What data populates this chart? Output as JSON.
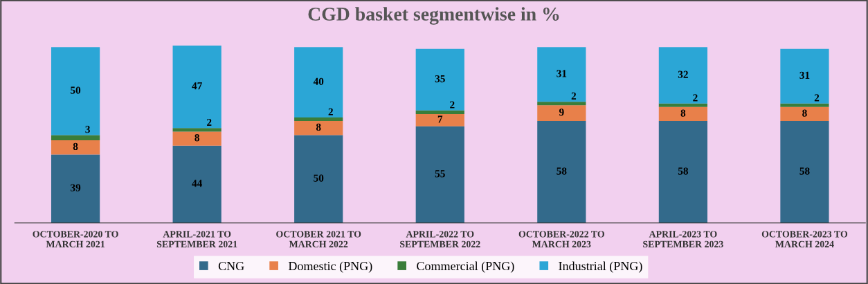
{
  "chart_data": {
    "type": "bar",
    "title": "CGD basket segmentwise in %",
    "categories": [
      "OCTOBER-2020 TO\nMARCH 2021",
      "APRIL-2021 TO\nSEPTEMBER 2021",
      "OCTOBER 2021 TO\nMARCH 2022",
      "APRIL-2022 TO\nSEPTEMBER 2022",
      "OCTOBER-2022 TO\nMARCH 2023",
      "APRIL-2023 TO\nSEPTEMBER 2023",
      "OCTOBER-2023 TO\nMARCH 2024"
    ],
    "stacked": true,
    "data_labels": true,
    "legend": "bottom",
    "grid": false,
    "series": [
      {
        "name": "CNG",
        "color": "#336a8b",
        "values": [
          39,
          44,
          50,
          55,
          58,
          58,
          58
        ]
      },
      {
        "name": "Domestic (PNG)",
        "color": "#e8804a",
        "values": [
          8,
          8,
          8,
          7,
          9,
          8,
          8
        ]
      },
      {
        "name": "Commercial (PNG)",
        "color": "#3a7d3a",
        "values": [
          3,
          2,
          2,
          2,
          2,
          2,
          2
        ]
      },
      {
        "name": "Industrial (PNG)",
        "color": "#2ba6d6",
        "values": [
          50,
          47,
          40,
          35,
          31,
          32,
          31
        ]
      }
    ]
  }
}
